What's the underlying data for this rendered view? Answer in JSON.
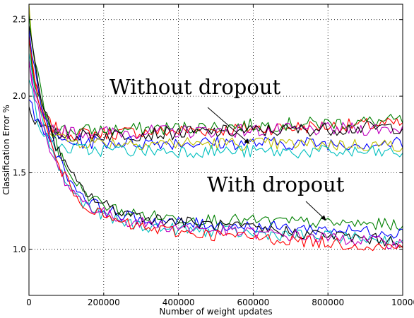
{
  "chart_data": {
    "type": "line",
    "title": "",
    "xlabel": "Number of weight updates",
    "ylabel": "Classification Error %",
    "xlim": [
      0,
      1000000
    ],
    "ylim": [
      0.7,
      2.6
    ],
    "x_ticks": [
      0,
      200000,
      400000,
      600000,
      800000,
      1000000
    ],
    "x_tick_labels": [
      "0",
      "200000",
      "400000",
      "600000",
      "800000",
      "1000000"
    ],
    "y_ticks": [
      1.0,
      1.5,
      2.0,
      2.5
    ],
    "y_tick_labels": [
      "1.0",
      "1.5",
      "2.0",
      "2.5"
    ],
    "grid": true,
    "grid_style": "dotted",
    "annotations": [
      {
        "text": "Without dropout",
        "arrow_to": [
          590000,
          1.69
        ]
      },
      {
        "text": "With dropout",
        "arrow_to": [
          795000,
          1.19
        ]
      }
    ],
    "groups": [
      {
        "name": "Without dropout",
        "series": [
          {
            "color": "#ff0000",
            "start": 2.4,
            "mid": 1.75,
            "final": 1.82
          },
          {
            "color": "#008000",
            "start": 2.35,
            "mid": 1.77,
            "final": 1.84
          },
          {
            "color": "#bf00bf",
            "start": 2.2,
            "mid": 1.76,
            "final": 1.79
          },
          {
            "color": "#000000",
            "start": 1.95,
            "mid": 1.74,
            "final": 1.8
          },
          {
            "color": "#0000ff",
            "start": 2.0,
            "mid": 1.7,
            "final": 1.69
          },
          {
            "color": "#bfbf00",
            "start": 2.6,
            "mid": 1.7,
            "final": 1.68
          },
          {
            "color": "#00bfbf",
            "start": 2.15,
            "mid": 1.65,
            "final": 1.63
          }
        ]
      },
      {
        "name": "With dropout",
        "series": [
          {
            "color": "#008000",
            "start": 2.5,
            "mid": 1.22,
            "final": 1.16
          },
          {
            "color": "#0000ff",
            "start": 2.4,
            "mid": 1.2,
            "final": 1.11
          },
          {
            "color": "#00bfbf",
            "start": 2.3,
            "mid": 1.16,
            "final": 1.06
          },
          {
            "color": "#000000",
            "start": 2.45,
            "mid": 1.24,
            "final": 1.05
          },
          {
            "color": "#bf00bf",
            "start": 2.2,
            "mid": 1.19,
            "final": 1.04
          },
          {
            "color": "#ff0000",
            "start": 2.35,
            "mid": 1.16,
            "final": 1.01
          }
        ]
      }
    ]
  }
}
